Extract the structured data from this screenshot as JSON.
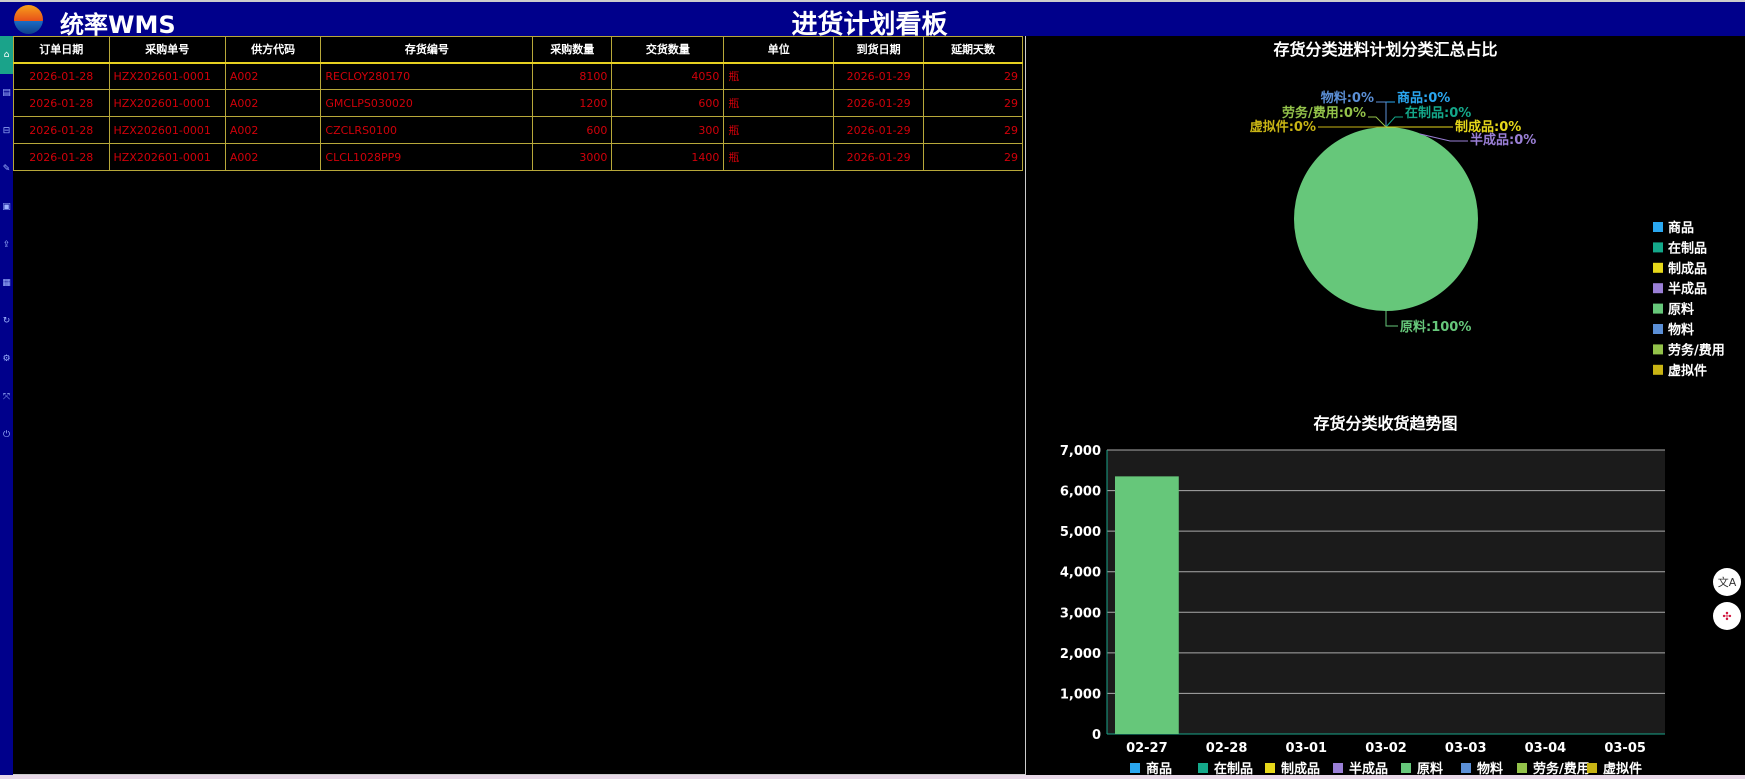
{
  "header": {
    "brand": "统率WMS",
    "title": "进货计划看板"
  },
  "sidebar": {
    "icons": [
      "home-icon",
      "document-icon",
      "inbox-icon",
      "edit-icon",
      "report-icon",
      "export-icon",
      "file-icon",
      "refresh-icon",
      "settings-icon",
      "fullscreen-icon",
      "power-icon"
    ]
  },
  "table": {
    "columns": [
      "订单日期",
      "采购单号",
      "供方代码",
      "存货编号",
      "采购数量",
      "交货数量",
      "单位",
      "到货日期",
      "延期天数"
    ],
    "rows": [
      [
        "2026-01-28",
        "HZX202601-0001",
        "A002",
        "RECLOY280170",
        "8100",
        "4050",
        "瓶",
        "2026-01-29",
        "29"
      ],
      [
        "2026-01-28",
        "HZX202601-0001",
        "A002",
        "GMCLPS030020",
        "1200",
        "600",
        "瓶",
        "2026-01-29",
        "29"
      ],
      [
        "2026-01-28",
        "HZX202601-0001",
        "A002",
        "CZCLRS0100",
        "600",
        "300",
        "瓶",
        "2026-01-29",
        "29"
      ],
      [
        "2026-01-28",
        "HZX202601-0001",
        "A002",
        "CLCL1028PP9",
        "3000",
        "1400",
        "瓶",
        "2026-01-29",
        "29"
      ]
    ]
  },
  "chart_data": [
    {
      "type": "pie",
      "title": "存货分类进料计划分类汇总占比",
      "slices": [
        {
          "name": "商品",
          "value": 0,
          "label": "商品:0%",
          "color": "#2aa7f0"
        },
        {
          "name": "在制品",
          "value": 0,
          "label": "在制品:0%",
          "color": "#14a88a"
        },
        {
          "name": "制成品",
          "value": 0,
          "label": "制成品:0%",
          "color": "#e6d81a"
        },
        {
          "name": "半成品",
          "value": 0,
          "label": "半成品:0%",
          "color": "#9a7fd6"
        },
        {
          "name": "原料",
          "value": 100,
          "label": "原料:100%",
          "color": "#66c77a"
        },
        {
          "name": "物料",
          "value": 0,
          "label": "物料:0%",
          "color": "#5b8fd6"
        },
        {
          "name": "劳务/费用",
          "value": 0,
          "label": "劳务/费用:0%",
          "color": "#93c24a"
        },
        {
          "name": "虚拟件",
          "value": 0,
          "label": "虚拟件:0%",
          "color": "#c8b414"
        }
      ],
      "legend_position": "right"
    },
    {
      "type": "bar",
      "title": "存货分类收货趋势图",
      "categories": [
        "02-27",
        "02-28",
        "03-01",
        "03-02",
        "03-03",
        "03-04",
        "03-05"
      ],
      "ylim": [
        0,
        7000
      ],
      "yticks": [
        "0",
        "1,000",
        "2,000",
        "3,000",
        "4,000",
        "5,000",
        "6,000",
        "7,000"
      ],
      "series": [
        {
          "name": "商品",
          "values": [
            0,
            0,
            0,
            0,
            0,
            0,
            0
          ],
          "color": "#2aa7f0"
        },
        {
          "name": "在制品",
          "values": [
            0,
            0,
            0,
            0,
            0,
            0,
            0
          ],
          "color": "#14a88a"
        },
        {
          "name": "制成品",
          "values": [
            0,
            0,
            0,
            0,
            0,
            0,
            0
          ],
          "color": "#e6d81a"
        },
        {
          "name": "半成品",
          "values": [
            0,
            0,
            0,
            0,
            0,
            0,
            0
          ],
          "color": "#9a7fd6"
        },
        {
          "name": "原料",
          "values": [
            6350,
            0,
            0,
            0,
            0,
            0,
            0
          ],
          "color": "#66c77a"
        },
        {
          "name": "物料",
          "values": [
            0,
            0,
            0,
            0,
            0,
            0,
            0
          ],
          "color": "#5b8fd6"
        },
        {
          "name": "劳务/费用",
          "values": [
            0,
            0,
            0,
            0,
            0,
            0,
            0
          ],
          "color": "#93c24a"
        },
        {
          "name": "虚拟件",
          "values": [
            0,
            0,
            0,
            0,
            0,
            0,
            0
          ],
          "color": "#c8b414"
        }
      ],
      "grid": true,
      "legend_position": "bottom"
    }
  ],
  "floating": {
    "translate_label": "文A",
    "plugin_icon": "network-icon"
  }
}
